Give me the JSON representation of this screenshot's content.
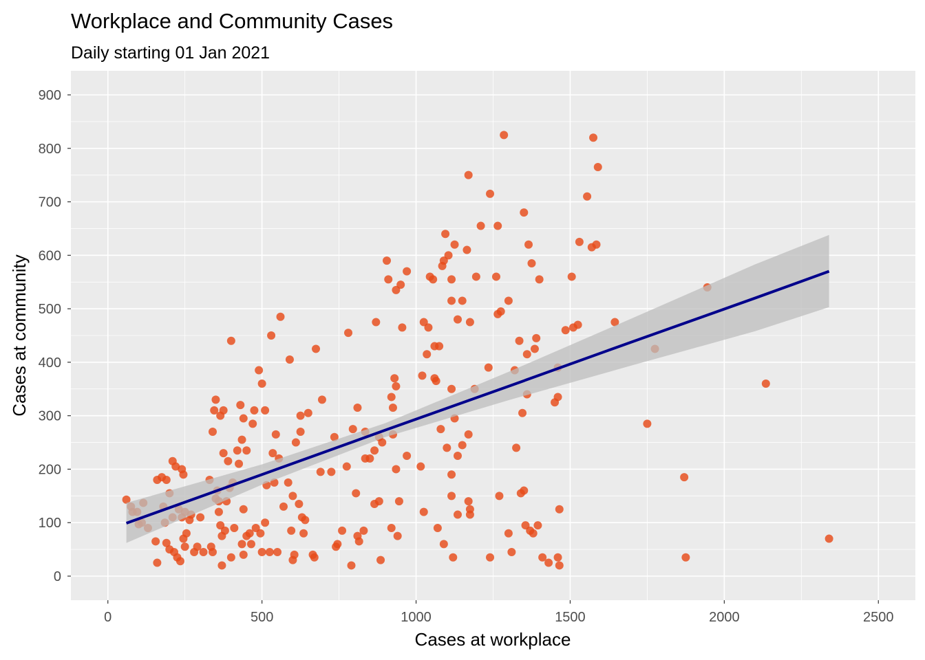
{
  "chart_data": {
    "type": "scatter",
    "title": "Workplace and Community Cases",
    "subtitle": "Daily starting 01 Jan 2021",
    "xlabel": "Cases at workplace",
    "ylabel": "Cases at community",
    "xlim": [
      -120,
      2620
    ],
    "ylim": [
      -45,
      945
    ],
    "xticks": [
      0,
      500,
      1000,
      1500,
      2000,
      2500
    ],
    "yticks": [
      0,
      100,
      200,
      300,
      400,
      500,
      600,
      700,
      800,
      900
    ],
    "xtick_labels": [
      "0",
      "500",
      "1000",
      "1500",
      "2000",
      "2500"
    ],
    "ytick_labels": [
      "0",
      "100",
      "200",
      "300",
      "400",
      "500",
      "600",
      "700",
      "800",
      "900"
    ],
    "grid": true,
    "legend": "none",
    "colors": {
      "point": "#E64A19",
      "line": "#00008B",
      "band": "#BEBEBE",
      "panel": "#EBEBEB"
    },
    "points": [
      [
        60,
        143
      ],
      [
        75,
        130
      ],
      [
        80,
        120
      ],
      [
        95,
        120
      ],
      [
        100,
        97
      ],
      [
        110,
        100
      ],
      [
        115,
        137
      ],
      [
        130,
        90
      ],
      [
        155,
        65
      ],
      [
        160,
        25
      ],
      [
        160,
        180
      ],
      [
        175,
        185
      ],
      [
        180,
        130
      ],
      [
        185,
        100
      ],
      [
        190,
        180
      ],
      [
        190,
        62
      ],
      [
        200,
        155
      ],
      [
        200,
        50
      ],
      [
        210,
        110
      ],
      [
        210,
        215
      ],
      [
        215,
        45
      ],
      [
        220,
        205
      ],
      [
        225,
        35
      ],
      [
        230,
        125
      ],
      [
        235,
        28
      ],
      [
        240,
        200
      ],
      [
        240,
        110
      ],
      [
        245,
        70
      ],
      [
        245,
        190
      ],
      [
        250,
        55
      ],
      [
        250,
        120
      ],
      [
        255,
        80
      ],
      [
        265,
        105
      ],
      [
        270,
        115
      ],
      [
        280,
        45
      ],
      [
        290,
        55
      ],
      [
        300,
        110
      ],
      [
        310,
        45
      ],
      [
        330,
        180
      ],
      [
        335,
        55
      ],
      [
        340,
        45
      ],
      [
        340,
        270
      ],
      [
        345,
        310
      ],
      [
        350,
        330
      ],
      [
        350,
        145
      ],
      [
        355,
        160
      ],
      [
        360,
        140
      ],
      [
        360,
        120
      ],
      [
        365,
        300
      ],
      [
        365,
        95
      ],
      [
        370,
        20
      ],
      [
        370,
        75
      ],
      [
        375,
        230
      ],
      [
        375,
        310
      ],
      [
        380,
        85
      ],
      [
        385,
        140
      ],
      [
        390,
        215
      ],
      [
        395,
        165
      ],
      [
        400,
        35
      ],
      [
        400,
        440
      ],
      [
        405,
        175
      ],
      [
        410,
        90
      ],
      [
        420,
        235
      ],
      [
        425,
        210
      ],
      [
        430,
        320
      ],
      [
        435,
        255
      ],
      [
        435,
        60
      ],
      [
        440,
        40
      ],
      [
        440,
        295
      ],
      [
        440,
        125
      ],
      [
        450,
        235
      ],
      [
        450,
        75
      ],
      [
        460,
        80
      ],
      [
        465,
        60
      ],
      [
        470,
        285
      ],
      [
        475,
        310
      ],
      [
        480,
        90
      ],
      [
        490,
        385
      ],
      [
        495,
        80
      ],
      [
        500,
        45
      ],
      [
        500,
        360
      ],
      [
        510,
        310
      ],
      [
        510,
        100
      ],
      [
        515,
        170
      ],
      [
        525,
        45
      ],
      [
        530,
        450
      ],
      [
        535,
        230
      ],
      [
        540,
        175
      ],
      [
        545,
        265
      ],
      [
        550,
        45
      ],
      [
        555,
        220
      ],
      [
        560,
        485
      ],
      [
        570,
        130
      ],
      [
        585,
        175
      ],
      [
        590,
        405
      ],
      [
        595,
        85
      ],
      [
        600,
        150
      ],
      [
        600,
        30
      ],
      [
        605,
        40
      ],
      [
        610,
        250
      ],
      [
        620,
        135
      ],
      [
        625,
        270
      ],
      [
        625,
        300
      ],
      [
        630,
        110
      ],
      [
        635,
        80
      ],
      [
        640,
        105
      ],
      [
        650,
        305
      ],
      [
        665,
        40
      ],
      [
        670,
        35
      ],
      [
        675,
        425
      ],
      [
        690,
        195
      ],
      [
        695,
        330
      ],
      [
        725,
        195
      ],
      [
        735,
        260
      ],
      [
        740,
        55
      ],
      [
        745,
        60
      ],
      [
        760,
        85
      ],
      [
        775,
        205
      ],
      [
        780,
        455
      ],
      [
        790,
        20
      ],
      [
        795,
        275
      ],
      [
        805,
        155
      ],
      [
        810,
        75
      ],
      [
        810,
        315
      ],
      [
        815,
        65
      ],
      [
        830,
        85
      ],
      [
        835,
        220
      ],
      [
        835,
        270
      ],
      [
        850,
        220
      ],
      [
        865,
        235
      ],
      [
        865,
        135
      ],
      [
        870,
        475
      ],
      [
        880,
        140
      ],
      [
        880,
        260
      ],
      [
        885,
        30
      ],
      [
        890,
        250
      ],
      [
        905,
        590
      ],
      [
        910,
        555
      ],
      [
        920,
        90
      ],
      [
        920,
        335
      ],
      [
        925,
        315
      ],
      [
        925,
        265
      ],
      [
        930,
        370
      ],
      [
        935,
        200
      ],
      [
        935,
        355
      ],
      [
        935,
        535
      ],
      [
        940,
        75
      ],
      [
        945,
        140
      ],
      [
        950,
        545
      ],
      [
        955,
        465
      ],
      [
        970,
        570
      ],
      [
        970,
        225
      ],
      [
        1015,
        205
      ],
      [
        1020,
        375
      ],
      [
        1025,
        120
      ],
      [
        1025,
        475
      ],
      [
        1035,
        415
      ],
      [
        1040,
        465
      ],
      [
        1045,
        560
      ],
      [
        1055,
        555
      ],
      [
        1060,
        430
      ],
      [
        1060,
        370
      ],
      [
        1065,
        365
      ],
      [
        1070,
        90
      ],
      [
        1075,
        430
      ],
      [
        1080,
        275
      ],
      [
        1085,
        580
      ],
      [
        1090,
        590
      ],
      [
        1090,
        60
      ],
      [
        1095,
        640
      ],
      [
        1100,
        240
      ],
      [
        1105,
        600
      ],
      [
        1115,
        515
      ],
      [
        1115,
        555
      ],
      [
        1115,
        350
      ],
      [
        1115,
        190
      ],
      [
        1115,
        150
      ],
      [
        1120,
        35
      ],
      [
        1125,
        620
      ],
      [
        1125,
        295
      ],
      [
        1135,
        480
      ],
      [
        1135,
        115
      ],
      [
        1135,
        225
      ],
      [
        1150,
        515
      ],
      [
        1150,
        245
      ],
      [
        1165,
        610
      ],
      [
        1170,
        265
      ],
      [
        1170,
        140
      ],
      [
        1170,
        750
      ],
      [
        1175,
        475
      ],
      [
        1175,
        125
      ],
      [
        1175,
        115
      ],
      [
        1190,
        350
      ],
      [
        1195,
        560
      ],
      [
        1210,
        655
      ],
      [
        1235,
        390
      ],
      [
        1240,
        35
      ],
      [
        1240,
        715
      ],
      [
        1260,
        560
      ],
      [
        1265,
        490
      ],
      [
        1265,
        655
      ],
      [
        1270,
        150
      ],
      [
        1275,
        495
      ],
      [
        1285,
        825
      ],
      [
        1300,
        515
      ],
      [
        1300,
        80
      ],
      [
        1310,
        45
      ],
      [
        1320,
        385
      ],
      [
        1325,
        240
      ],
      [
        1335,
        440
      ],
      [
        1340,
        155
      ],
      [
        1345,
        305
      ],
      [
        1350,
        680
      ],
      [
        1350,
        160
      ],
      [
        1355,
        95
      ],
      [
        1360,
        415
      ],
      [
        1360,
        340
      ],
      [
        1365,
        620
      ],
      [
        1370,
        85
      ],
      [
        1375,
        585
      ],
      [
        1380,
        80
      ],
      [
        1385,
        425
      ],
      [
        1390,
        445
      ],
      [
        1395,
        95
      ],
      [
        1400,
        555
      ],
      [
        1410,
        35
      ],
      [
        1430,
        25
      ],
      [
        1450,
        325
      ],
      [
        1460,
        390
      ],
      [
        1460,
        335
      ],
      [
        1460,
        35
      ],
      [
        1465,
        20
      ],
      [
        1465,
        125
      ],
      [
        1485,
        460
      ],
      [
        1505,
        560
      ],
      [
        1510,
        465
      ],
      [
        1525,
        470
      ],
      [
        1530,
        625
      ],
      [
        1555,
        710
      ],
      [
        1570,
        615
      ],
      [
        1575,
        820
      ],
      [
        1585,
        620
      ],
      [
        1590,
        765
      ],
      [
        1645,
        475
      ],
      [
        1750,
        285
      ],
      [
        1775,
        425
      ],
      [
        1870,
        185
      ],
      [
        1875,
        35
      ],
      [
        1945,
        540
      ],
      [
        2135,
        360
      ],
      [
        2340,
        70
      ]
    ],
    "smooth": {
      "method": "lm",
      "x": [
        60,
        500,
        900,
        1300,
        1700,
        2100,
        2340
      ],
      "fit": [
        99,
        190,
        273,
        355,
        438,
        520,
        570
      ],
      "lower": [
        62,
        171,
        260,
        329,
        394,
        458,
        503
      ],
      "upper": [
        137,
        209,
        286,
        382,
        482,
        583,
        638
      ]
    }
  }
}
